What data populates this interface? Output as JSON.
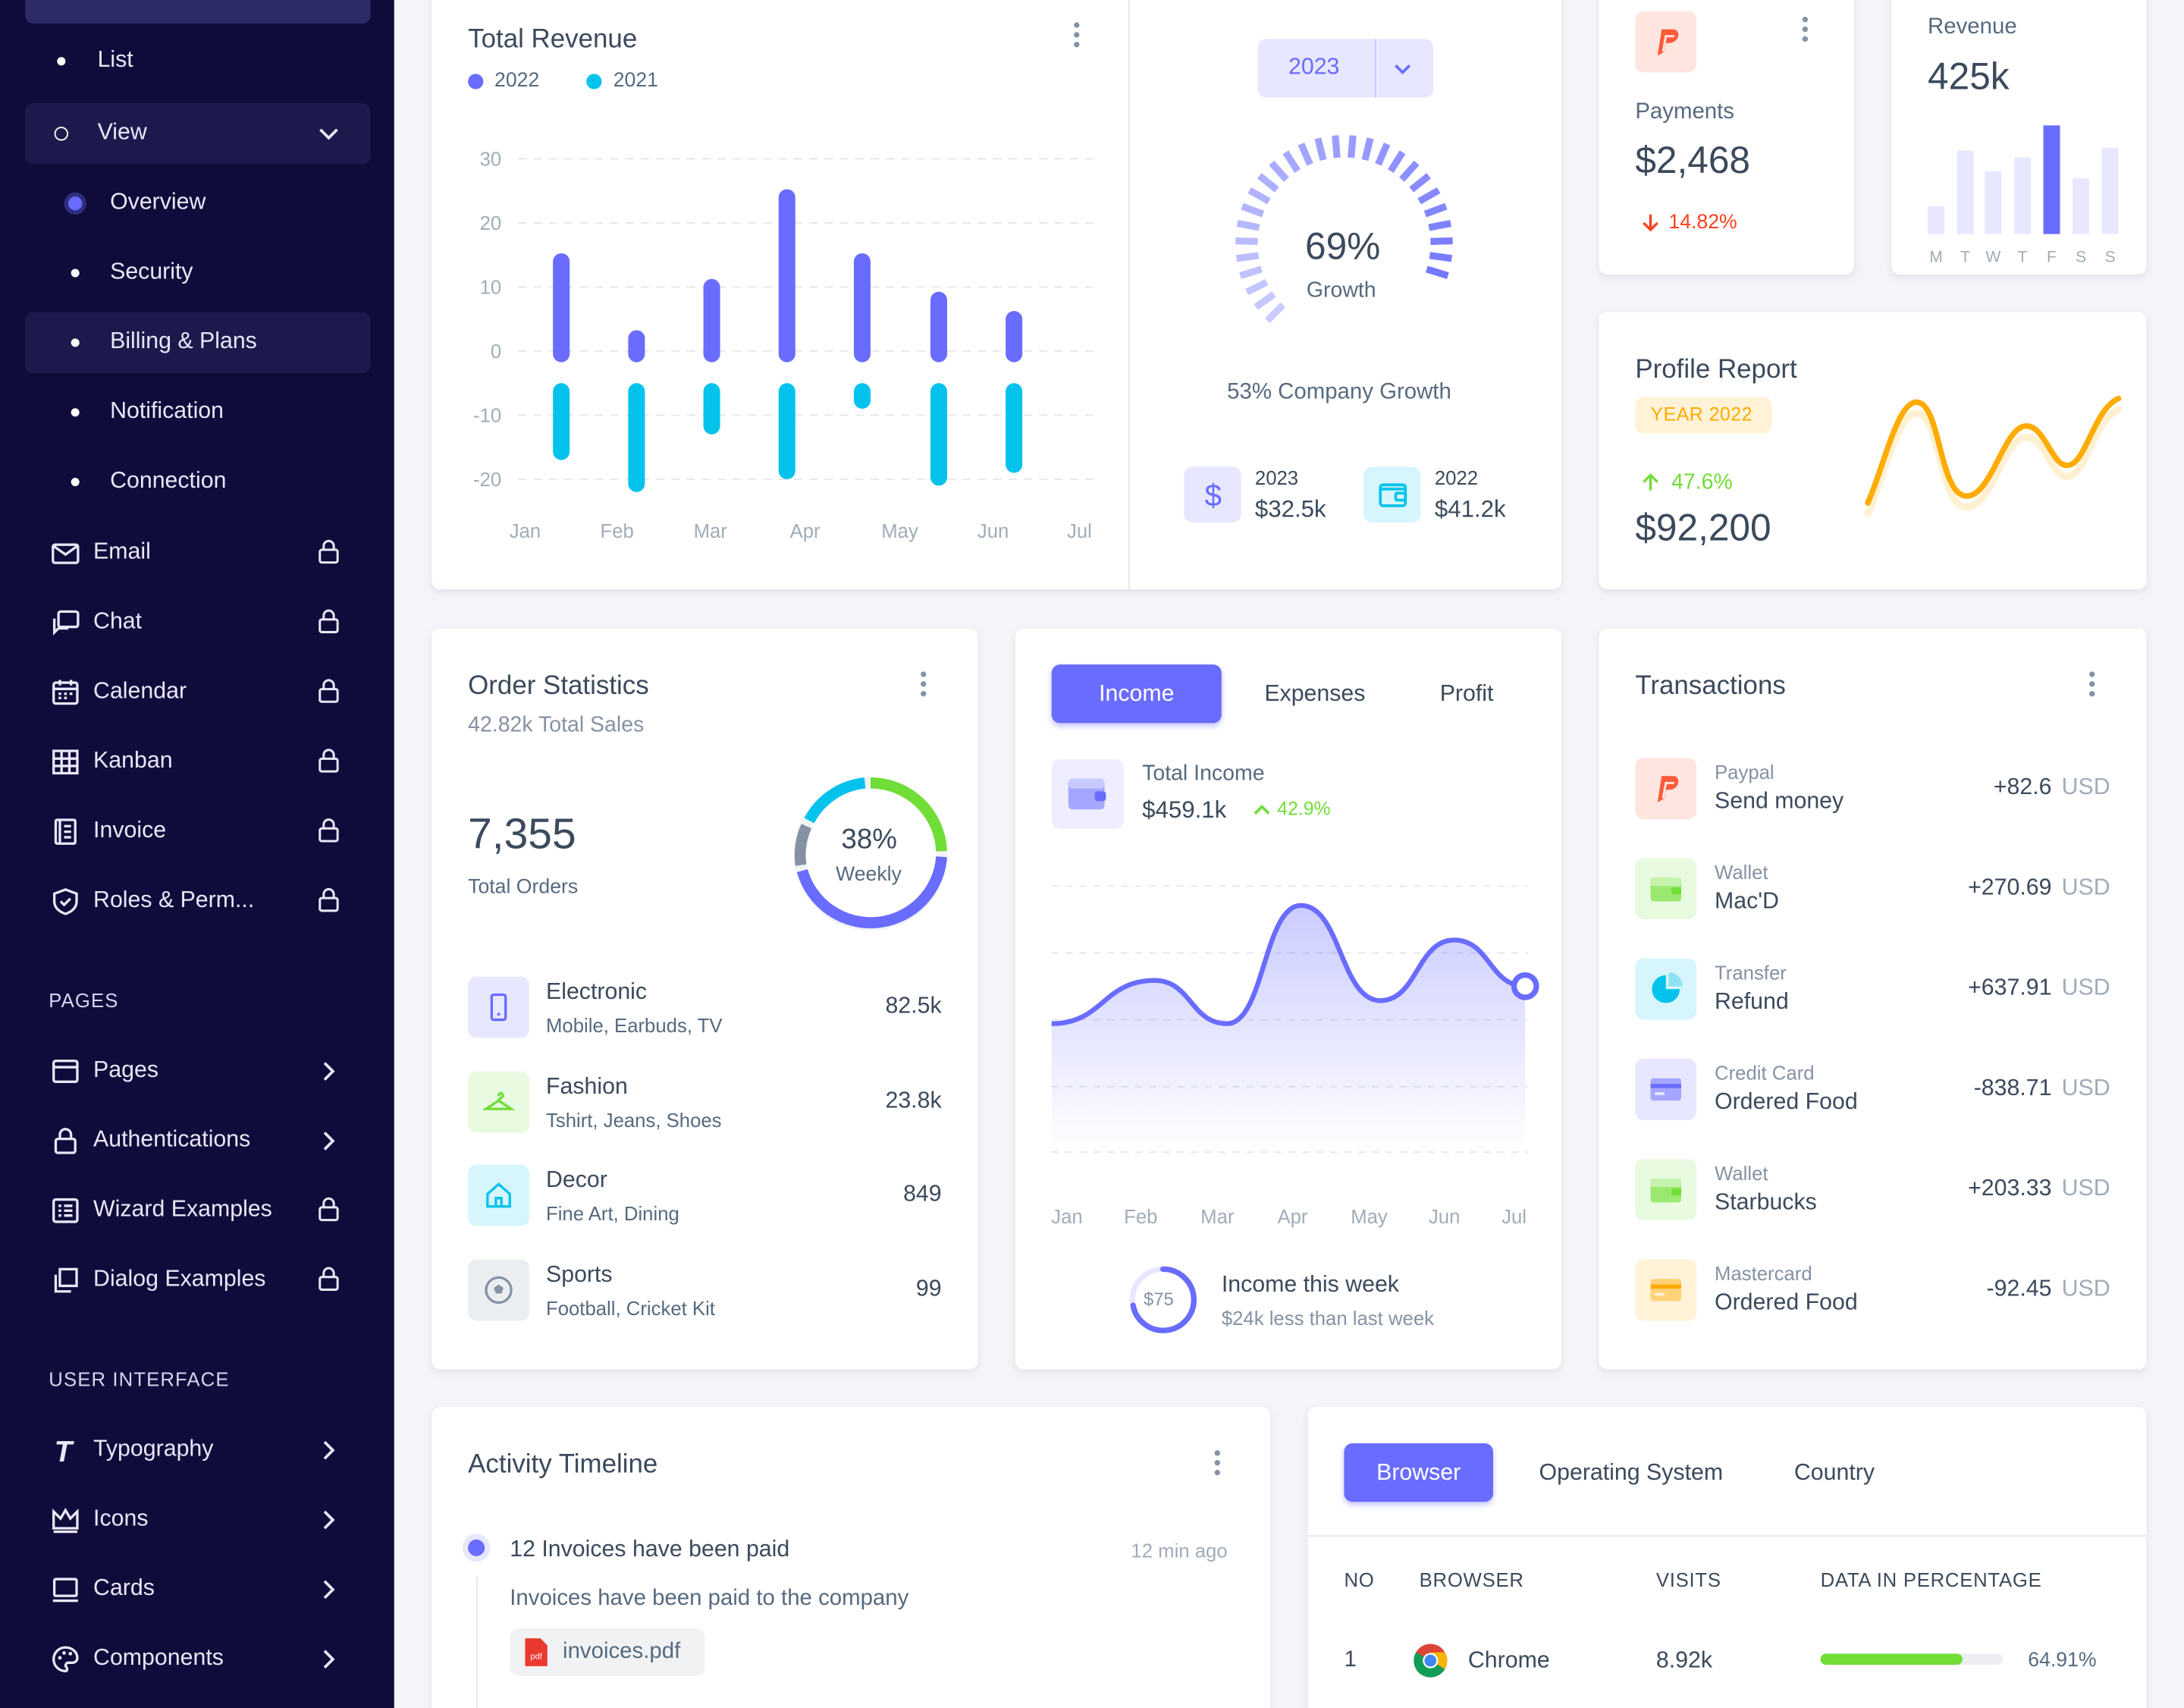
{
  "sidebar": {
    "sub_items": [
      {
        "label": "List",
        "type": "dot"
      },
      {
        "label": "View",
        "type": "ring"
      },
      {
        "label": "Overview",
        "type": "selected"
      },
      {
        "label": "Security",
        "type": "dot"
      },
      {
        "label": "Billing & Plans",
        "type": "dot"
      },
      {
        "label": "Notification",
        "type": "dot"
      },
      {
        "label": "Connection",
        "type": "dot"
      }
    ],
    "apps": [
      {
        "label": "Email",
        "icon": "mail-icon"
      },
      {
        "label": "Chat",
        "icon": "chat-icon"
      },
      {
        "label": "Calendar",
        "icon": "calendar-icon"
      },
      {
        "label": "Kanban",
        "icon": "grid-icon"
      },
      {
        "label": "Invoice",
        "icon": "file-icon"
      },
      {
        "label": "Roles & Perm...",
        "icon": "shield-icon"
      }
    ],
    "pages_section": "PAGES",
    "pages": [
      {
        "label": "Pages",
        "trail": "chevron"
      },
      {
        "label": "Authentications",
        "trail": "chevron"
      },
      {
        "label": "Wizard Examples",
        "trail": "lock"
      },
      {
        "label": "Dialog Examples",
        "trail": "lock"
      }
    ],
    "ui_section": "USER INTERFACE",
    "ui": [
      {
        "label": "Typography",
        "trail": "chevron"
      },
      {
        "label": "Icons",
        "trail": "chevron"
      },
      {
        "label": "Cards",
        "trail": "chevron"
      },
      {
        "label": "Components",
        "trail": "chevron"
      }
    ]
  },
  "revenue": {
    "title": "Total Revenue",
    "legend": [
      "2022",
      "2021"
    ],
    "colors": {
      "a": "#696cff",
      "b": "#03c3ec"
    },
    "chart_data": {
      "type": "bar",
      "categories": [
        "Jan",
        "Feb",
        "Mar",
        "Apr",
        "May",
        "Jun",
        "Jul"
      ],
      "series": [
        {
          "name": "2022",
          "values": [
            17,
            5,
            13,
            27,
            17,
            11,
            8
          ]
        },
        {
          "name": "2021",
          "values": [
            -12,
            -17,
            -8,
            -15,
            -4,
            -16,
            -14
          ]
        }
      ],
      "yticks": [
        30,
        20,
        10,
        0,
        -10,
        -20
      ],
      "ylim": [
        -20,
        30
      ],
      "grid": true
    }
  },
  "growth": {
    "year_select": "2023",
    "percent": "69%",
    "percent_value": 69,
    "label": "Growth",
    "company": "53% Company Growth",
    "stats": [
      {
        "year": "2023",
        "value": "$32.5k"
      },
      {
        "year": "2022",
        "value": "$41.2k"
      }
    ]
  },
  "payments": {
    "label": "Payments",
    "value": "$2,468",
    "change": "14.82%"
  },
  "mini_revenue": {
    "label": "Revenue",
    "value": "425k",
    "chart_data": {
      "type": "bar",
      "categories": [
        "M",
        "T",
        "W",
        "T",
        "F",
        "S",
        "S"
      ],
      "values": [
        20,
        60,
        45,
        55,
        78,
        40,
        62
      ],
      "highlight_index": 4
    }
  },
  "profile": {
    "title": "Profile Report",
    "badge": "YEAR 2022",
    "change": "47.6%",
    "value": "$92,200"
  },
  "orders": {
    "title": "Order Statistics",
    "subtitle": "42.82k Total Sales",
    "total": "7,355",
    "total_label": "Total Orders",
    "donut_pct": "38%",
    "donut_label": "Weekly",
    "items": [
      {
        "name": "Electronic",
        "sub": "Mobile, Earbuds, TV",
        "value": "82.5k",
        "icon": "mobile-icon"
      },
      {
        "name": "Fashion",
        "sub": "Tshirt, Jeans, Shoes",
        "value": "23.8k",
        "icon": "hanger-icon"
      },
      {
        "name": "Decor",
        "sub": "Fine Art, Dining",
        "value": "849",
        "icon": "home-icon"
      },
      {
        "name": "Sports",
        "sub": "Football, Cricket Kit",
        "value": "99",
        "icon": "football-icon"
      }
    ]
  },
  "income": {
    "tabs": [
      "Income",
      "Expenses",
      "Profit"
    ],
    "total_label": "Total Income",
    "total_value": "$459.1k",
    "change": "42.9%",
    "chart_data": {
      "type": "area",
      "categories": [
        "Jan",
        "Feb",
        "Mar",
        "Apr",
        "May",
        "Jun",
        "Jul"
      ],
      "values": [
        3,
        18,
        3,
        44,
        11,
        32,
        16
      ]
    },
    "week_value": "$75",
    "week_title": "Income this week",
    "week_sub": "$24k less than last week"
  },
  "transactions": {
    "title": "Transactions",
    "items": [
      {
        "type": "Paypal",
        "desc": "Send money",
        "amount": "+82.6",
        "currency": "USD",
        "icon": "paypal-icon"
      },
      {
        "type": "Wallet",
        "desc": "Mac'D",
        "amount": "+270.69",
        "currency": "USD",
        "icon": "wallet-icon"
      },
      {
        "type": "Transfer",
        "desc": "Refund",
        "amount": "+637.91",
        "currency": "USD",
        "icon": "chart-icon"
      },
      {
        "type": "Credit Card",
        "desc": "Ordered Food",
        "amount": "-838.71",
        "currency": "USD",
        "icon": "credit-card-icon"
      },
      {
        "type": "Wallet",
        "desc": "Starbucks",
        "amount": "+203.33",
        "currency": "USD",
        "icon": "wallet-icon"
      },
      {
        "type": "Mastercard",
        "desc": "Ordered Food",
        "amount": "-92.45",
        "currency": "USD",
        "icon": "mastercard-icon"
      }
    ]
  },
  "activity": {
    "title": "Activity Timeline",
    "event_title": "12 Invoices have been paid",
    "event_time": "12 min ago",
    "event_desc": "Invoices have been paid to the company",
    "attachment": "invoices.pdf"
  },
  "browser": {
    "tabs": [
      "Browser",
      "Operating System",
      "Country"
    ],
    "headers": [
      "NO",
      "BROWSER",
      "VISITS",
      "DATA IN PERCENTAGE"
    ],
    "rows": [
      {
        "no": "1",
        "name": "Chrome",
        "visits": "8.92k",
        "pct": "64.91%",
        "pct_value": 64.91
      }
    ]
  }
}
